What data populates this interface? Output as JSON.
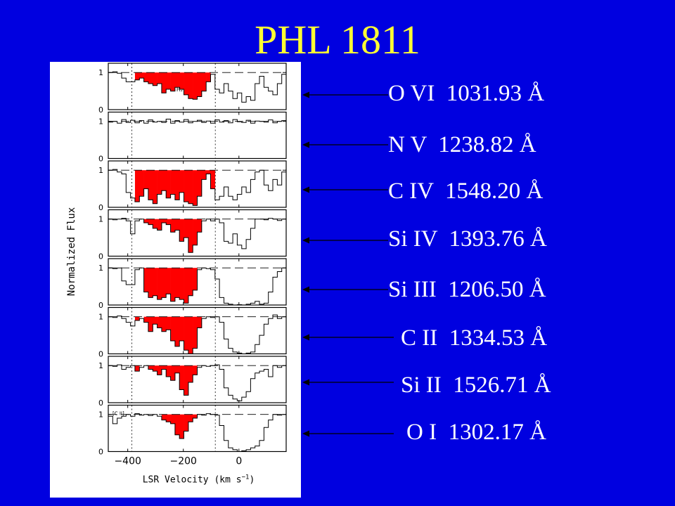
{
  "title": "PHL 1811",
  "colors": {
    "background": "#0000e0",
    "title": "#ffff33",
    "label": "#ffffff",
    "absorption": "#ff0000",
    "plot_bg": "#ffffff"
  },
  "chart_data": {
    "type": "line",
    "ylabel": "Normalized Flux",
    "xlabel": "LSR Velocity (km s",
    "xlabel_exp": "−1",
    "xlabel_close": ")",
    "xlim": [
      -470,
      170
    ],
    "ylim": [
      0,
      1.25
    ],
    "xticks": [
      -400,
      -200,
      0
    ],
    "yticks": [
      0,
      1
    ],
    "dashed_verticals": [
      -385,
      -85
    ],
    "panels": [
      {
        "line": "O VI  1031.93 Å",
        "inset": "H₂",
        "flux": [
          1.0,
          1.02,
          0.98,
          0.85,
          0.75,
          0.75,
          0.8,
          0.85,
          0.75,
          0.7,
          0.65,
          0.7,
          0.45,
          0.55,
          0.5,
          0.6,
          0.55,
          0.4,
          0.3,
          0.28,
          0.35,
          0.5,
          0.75,
          0.95,
          0.55,
          0.45,
          0.7,
          0.5,
          0.3,
          0.45,
          0.2,
          0.35,
          0.25,
          0.7,
          0.9,
          0.6,
          0.5,
          0.4,
          0.7,
          0.95
        ]
      },
      {
        "line": "N V  1238.82 Å",
        "inset": "",
        "flux": [
          0.98,
          1.0,
          0.95,
          1.05,
          0.97,
          1.03,
          0.96,
          1.02,
          0.95,
          1.04,
          0.98,
          1.0,
          0.97,
          1.06,
          0.95,
          1.02,
          0.98,
          1.05,
          0.96,
          1.0,
          1.03,
          0.97,
          1.01,
          0.95,
          1.04,
          0.98,
          1.02,
          0.96,
          1.05,
          0.99,
          0.97,
          1.03,
          0.95,
          1.01,
          1.0,
          0.98,
          1.04,
          0.96,
          1.0,
          1.02
        ]
      },
      {
        "line": "C IV  1548.20 Å",
        "inset": "",
        "flux": [
          1.0,
          1.02,
          0.95,
          0.9,
          0.4,
          0.25,
          0.15,
          0.3,
          0.5,
          0.2,
          0.1,
          0.35,
          0.45,
          0.25,
          0.35,
          0.2,
          0.4,
          0.15,
          0.1,
          0.05,
          0.3,
          0.75,
          0.9,
          0.5,
          0.2,
          0.3,
          0.55,
          0.3,
          0.2,
          0.35,
          0.55,
          0.4,
          0.75,
          0.95,
          1.0,
          0.6,
          0.45,
          0.75,
          0.6,
          0.95
        ]
      },
      {
        "line": "Si IV  1393.76 Å",
        "inset": "",
        "flux": [
          1.0,
          0.98,
          1.0,
          1.02,
          0.95,
          0.6,
          0.95,
          1.0,
          0.9,
          0.85,
          0.75,
          0.7,
          0.9,
          0.85,
          0.65,
          0.7,
          0.4,
          0.5,
          0.1,
          0.3,
          0.65,
          0.95,
          1.0,
          0.95,
          1.0,
          0.9,
          0.4,
          0.35,
          0.6,
          0.3,
          0.2,
          0.45,
          0.75,
          1.0,
          1.0,
          0.98,
          1.02,
          1.0,
          0.96,
          1.0
        ]
      },
      {
        "line": "Si III  1206.50 Å",
        "inset": "",
        "flux": [
          1.0,
          0.98,
          1.0,
          0.65,
          0.55,
          0.55,
          0.95,
          1.0,
          0.35,
          0.2,
          0.25,
          0.15,
          0.2,
          0.3,
          0.1,
          0.2,
          0.15,
          0.05,
          0.25,
          0.4,
          0.95,
          1.0,
          0.98,
          0.95,
          0.7,
          0.2,
          0.05,
          0.02,
          0.0,
          0.01,
          0.0,
          0.02,
          0.05,
          0.1,
          0.02,
          0.05,
          0.35,
          0.75,
          0.9,
          1.0
        ]
      },
      {
        "line": "C II  1334.53 Å",
        "inset": "",
        "flux": [
          1.0,
          0.98,
          1.02,
          0.95,
          0.85,
          0.75,
          0.9,
          0.95,
          0.85,
          0.6,
          0.8,
          0.7,
          0.6,
          0.65,
          0.35,
          0.2,
          0.35,
          0.1,
          0.0,
          0.15,
          0.7,
          0.95,
          1.0,
          0.98,
          1.0,
          0.85,
          0.4,
          0.15,
          0.05,
          0.02,
          0.0,
          0.02,
          0.05,
          0.25,
          0.5,
          0.8,
          0.95,
          1.05,
          0.95,
          1.0
        ]
      },
      {
        "line": "Si II  1526.71 Å",
        "inset": "",
        "flux": [
          1.0,
          0.98,
          1.02,
          0.9,
          0.95,
          1.0,
          0.85,
          0.95,
          1.0,
          0.9,
          0.85,
          0.75,
          0.9,
          0.7,
          0.6,
          0.8,
          0.35,
          0.2,
          0.55,
          0.75,
          0.95,
          1.0,
          0.98,
          1.0,
          1.02,
          0.9,
          0.4,
          0.2,
          0.1,
          0.05,
          0.15,
          0.3,
          0.65,
          0.8,
          0.85,
          0.9,
          0.7,
          1.0,
          0.95,
          1.0
        ]
      },
      {
        "line": "O I  1302.17 Å",
        "inset": "[C II]",
        "flux": [
          0.95,
          0.75,
          0.9,
          0.95,
          1.0,
          0.95,
          1.02,
          0.98,
          1.0,
          0.97,
          1.0,
          0.95,
          0.85,
          0.8,
          0.75,
          0.45,
          0.35,
          0.55,
          0.8,
          0.9,
          1.0,
          0.98,
          1.02,
          1.0,
          0.98,
          0.7,
          0.3,
          0.1,
          0.05,
          0.0,
          0.02,
          0.05,
          0.1,
          0.15,
          0.3,
          0.65,
          0.85,
          1.0,
          0.98,
          1.0
        ]
      }
    ]
  }
}
